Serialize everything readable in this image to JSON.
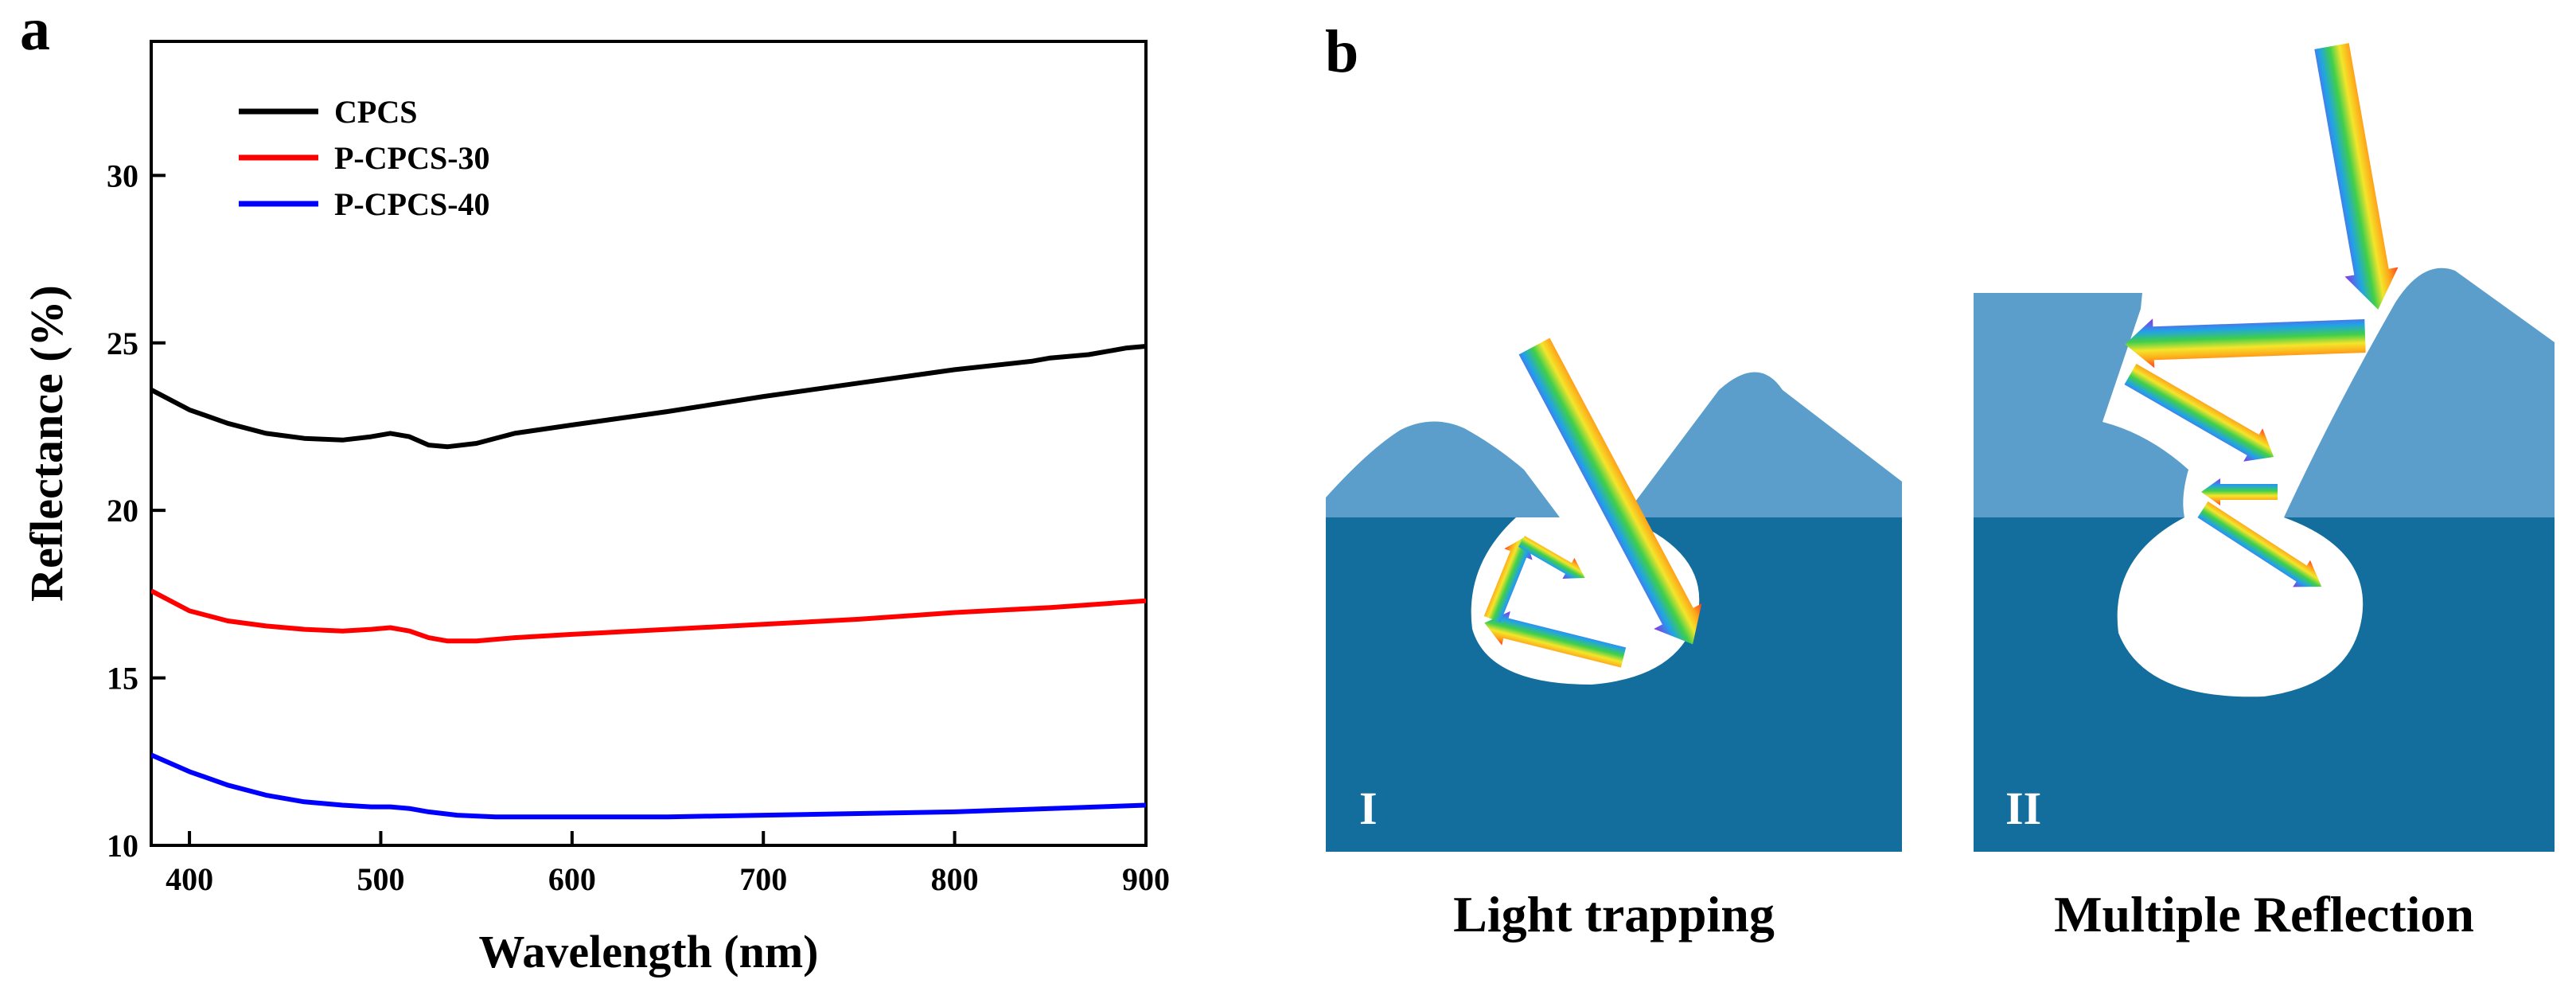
{
  "panel_labels": {
    "a": "a",
    "b": "b"
  },
  "chart_data": {
    "type": "line",
    "xlabel": "Wavelength (nm)",
    "ylabel": "Reflectance (%)",
    "xlim": [
      380,
      900
    ],
    "ylim": [
      10,
      34
    ],
    "xticks": [
      400,
      500,
      600,
      700,
      800,
      900
    ],
    "yticks": [
      10,
      15,
      20,
      25,
      30
    ],
    "grid": false,
    "legend_position": "top-left",
    "series": [
      {
        "name": "CPCS",
        "color": "#000000",
        "x": [
          380,
          400,
          420,
          440,
          460,
          480,
          495,
          505,
          515,
          525,
          535,
          550,
          570,
          600,
          650,
          700,
          750,
          800,
          840,
          850,
          870,
          890,
          900
        ],
        "y": [
          23.6,
          23.0,
          22.6,
          22.3,
          22.15,
          22.1,
          22.2,
          22.3,
          22.2,
          21.95,
          21.9,
          22.0,
          22.3,
          22.55,
          22.95,
          23.4,
          23.8,
          24.2,
          24.45,
          24.55,
          24.65,
          24.85,
          24.9
        ]
      },
      {
        "name": "P-CPCS-30",
        "color": "#ff0000",
        "x": [
          380,
          400,
          420,
          440,
          460,
          480,
          495,
          505,
          515,
          525,
          535,
          550,
          570,
          600,
          650,
          700,
          750,
          800,
          850,
          900
        ],
        "y": [
          17.6,
          17.0,
          16.7,
          16.55,
          16.45,
          16.4,
          16.45,
          16.5,
          16.4,
          16.2,
          16.1,
          16.1,
          16.2,
          16.3,
          16.45,
          16.6,
          16.75,
          16.95,
          17.1,
          17.3
        ]
      },
      {
        "name": "P-CPCS-40",
        "color": "#0000ff",
        "x": [
          380,
          400,
          420,
          440,
          460,
          480,
          495,
          505,
          515,
          525,
          540,
          560,
          600,
          650,
          700,
          750,
          800,
          850,
          900
        ],
        "y": [
          12.7,
          12.2,
          11.8,
          11.5,
          11.3,
          11.2,
          11.15,
          11.15,
          11.1,
          11.0,
          10.9,
          10.85,
          10.85,
          10.85,
          10.9,
          10.95,
          11.0,
          11.1,
          11.2
        ]
      }
    ]
  },
  "diagram": {
    "panel_I_label": "I",
    "panel_II_label": "II",
    "caption_I": "Light trapping",
    "caption_II": "Multiple Reflection",
    "colors": {
      "surface_light": "#5b9ecc",
      "substrate_dark": "#136e9e",
      "cavity": "#ffffff"
    }
  }
}
